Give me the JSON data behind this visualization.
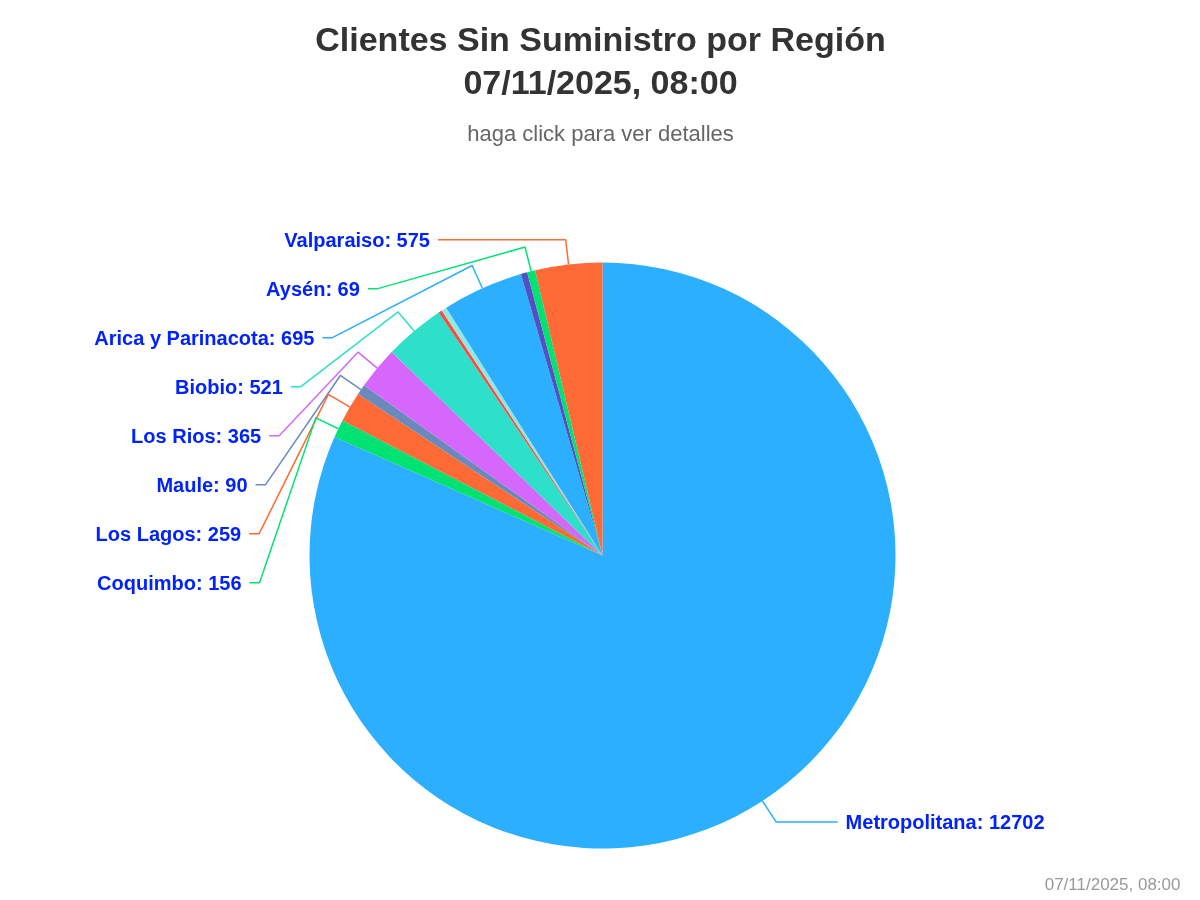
{
  "chart_data": {
    "type": "pie",
    "title": "Clientes Sin Suministro por Región\n07/11/2025, 08:00",
    "subtitle": "haga click para ver detalles",
    "categories": [
      "Metropolitana",
      "Coquimbo",
      "Los Lagos",
      "Maule",
      "Los Rios",
      "Biobio",
      null,
      null,
      "Arica y Parinacota",
      null,
      "Aysén",
      "Valparaiso"
    ],
    "values": [
      12702,
      156,
      259,
      90,
      365,
      521,
      30,
      45,
      695,
      55,
      69,
      575
    ],
    "colors": [
      "#2caffe",
      "#00e272",
      "#fe6a35",
      "#6b8abc",
      "#d568fb",
      "#2ee0ca",
      "#fa4b42",
      "#91e8e1",
      "#2caffe",
      "#544fc5",
      "#00e272",
      "#fe6a35"
    ],
    "value_labels": [
      ": 12702",
      ": 156",
      ": 259",
      ": 90",
      ": 365",
      ": 521",
      null,
      null,
      ": 695",
      null,
      ": 69",
      ": 575"
    ],
    "annotations": [
      "07/11/2025, 08:00"
    ]
  }
}
